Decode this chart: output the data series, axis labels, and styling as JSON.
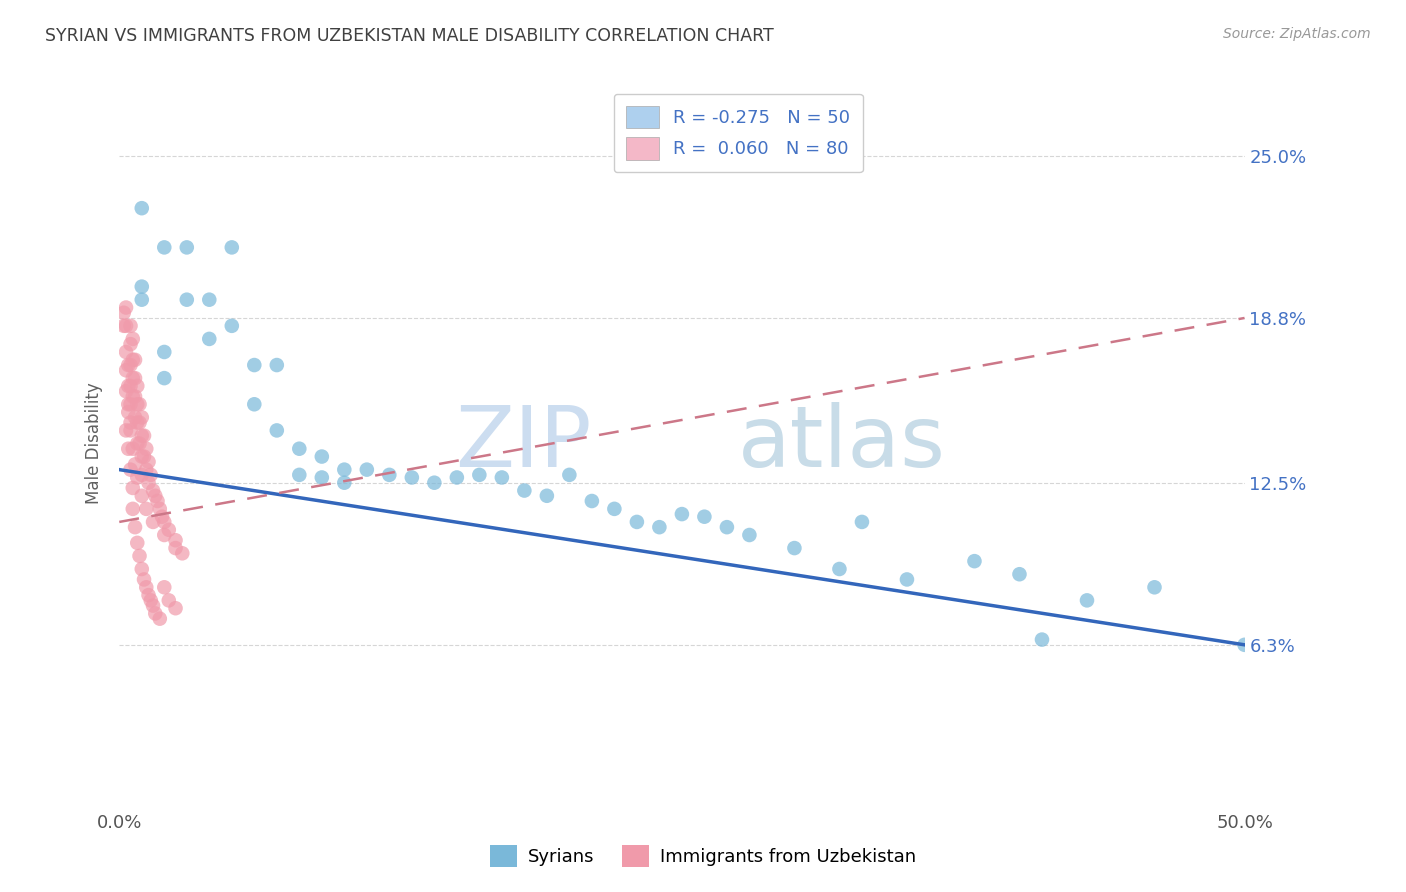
{
  "title": "SYRIAN VS IMMIGRANTS FROM UZBEKISTAN MALE DISABILITY CORRELATION CHART",
  "source": "Source: ZipAtlas.com",
  "ylabel": "Male Disability",
  "xlim": [
    0.0,
    0.5
  ],
  "ylim": [
    0.0,
    0.28
  ],
  "ytick_labels": [
    "6.3%",
    "12.5%",
    "18.8%",
    "25.0%"
  ],
  "ytick_values": [
    0.063,
    0.125,
    0.188,
    0.25
  ],
  "xtick_labels": [
    "0.0%",
    "50.0%"
  ],
  "xtick_values": [
    0.0,
    0.5
  ],
  "legend_r1": "R = -0.275",
  "legend_n1": "N = 50",
  "legend_r2": "R =  0.060",
  "legend_n2": "N = 80",
  "legend_color1": "#aed0ee",
  "legend_color2": "#f4b8c8",
  "series1_color": "#7ab8d9",
  "series2_color": "#f09aaa",
  "trendline1_color": "#3366bb",
  "trendline2_color": "#cc7788",
  "background_color": "#ffffff",
  "grid_color": "#cccccc",
  "title_color": "#404040",
  "axis_label_color": "#606060",
  "right_tick_color": "#4472c4",
  "watermark_color": "#ddeeff",
  "syrians_x": [
    0.01,
    0.01,
    0.01,
    0.02,
    0.02,
    0.02,
    0.03,
    0.03,
    0.04,
    0.04,
    0.05,
    0.05,
    0.06,
    0.06,
    0.07,
    0.07,
    0.08,
    0.08,
    0.09,
    0.09,
    0.1,
    0.1,
    0.11,
    0.12,
    0.13,
    0.14,
    0.15,
    0.16,
    0.17,
    0.18,
    0.19,
    0.2,
    0.21,
    0.22,
    0.23,
    0.24,
    0.25,
    0.26,
    0.27,
    0.28,
    0.3,
    0.32,
    0.35,
    0.38,
    0.4,
    0.43,
    0.46,
    0.5,
    0.33,
    0.41
  ],
  "syrians_y": [
    0.23,
    0.2,
    0.195,
    0.215,
    0.175,
    0.165,
    0.215,
    0.195,
    0.195,
    0.18,
    0.215,
    0.185,
    0.17,
    0.155,
    0.17,
    0.145,
    0.128,
    0.138,
    0.135,
    0.127,
    0.13,
    0.125,
    0.13,
    0.128,
    0.127,
    0.125,
    0.127,
    0.128,
    0.127,
    0.122,
    0.12,
    0.128,
    0.118,
    0.115,
    0.11,
    0.108,
    0.113,
    0.112,
    0.108,
    0.105,
    0.1,
    0.092,
    0.088,
    0.095,
    0.09,
    0.08,
    0.085,
    0.063,
    0.11,
    0.065
  ],
  "uzbekistan_x": [
    0.002,
    0.002,
    0.003,
    0.003,
    0.003,
    0.003,
    0.004,
    0.004,
    0.004,
    0.005,
    0.005,
    0.005,
    0.005,
    0.005,
    0.005,
    0.006,
    0.006,
    0.006,
    0.006,
    0.007,
    0.007,
    0.007,
    0.007,
    0.008,
    0.008,
    0.008,
    0.008,
    0.009,
    0.009,
    0.009,
    0.01,
    0.01,
    0.01,
    0.01,
    0.011,
    0.011,
    0.012,
    0.012,
    0.013,
    0.013,
    0.014,
    0.015,
    0.016,
    0.017,
    0.018,
    0.019,
    0.02,
    0.022,
    0.025,
    0.028,
    0.003,
    0.004,
    0.005,
    0.006,
    0.006,
    0.007,
    0.008,
    0.009,
    0.01,
    0.011,
    0.012,
    0.013,
    0.014,
    0.015,
    0.016,
    0.018,
    0.02,
    0.022,
    0.025,
    0.003,
    0.004,
    0.005,
    0.006,
    0.007,
    0.008,
    0.01,
    0.012,
    0.015,
    0.02,
    0.025
  ],
  "uzbekistan_y": [
    0.19,
    0.185,
    0.192,
    0.185,
    0.175,
    0.168,
    0.17,
    0.162,
    0.155,
    0.185,
    0.178,
    0.17,
    0.162,
    0.155,
    0.148,
    0.18,
    0.172,
    0.165,
    0.158,
    0.172,
    0.165,
    0.158,
    0.15,
    0.162,
    0.155,
    0.148,
    0.14,
    0.155,
    0.148,
    0.14,
    0.15,
    0.143,
    0.135,
    0.128,
    0.143,
    0.135,
    0.138,
    0.13,
    0.133,
    0.125,
    0.128,
    0.122,
    0.12,
    0.118,
    0.115,
    0.112,
    0.11,
    0.107,
    0.103,
    0.098,
    0.145,
    0.138,
    0.13,
    0.123,
    0.115,
    0.108,
    0.102,
    0.097,
    0.092,
    0.088,
    0.085,
    0.082,
    0.08,
    0.078,
    0.075,
    0.073,
    0.085,
    0.08,
    0.077,
    0.16,
    0.152,
    0.145,
    0.138,
    0.132,
    0.127,
    0.12,
    0.115,
    0.11,
    0.105,
    0.1
  ],
  "trendline1_x": [
    0.0,
    0.5
  ],
  "trendline1_y": [
    0.13,
    0.063
  ],
  "trendline2_x": [
    0.0,
    0.5
  ],
  "trendline2_y": [
    0.11,
    0.188
  ]
}
